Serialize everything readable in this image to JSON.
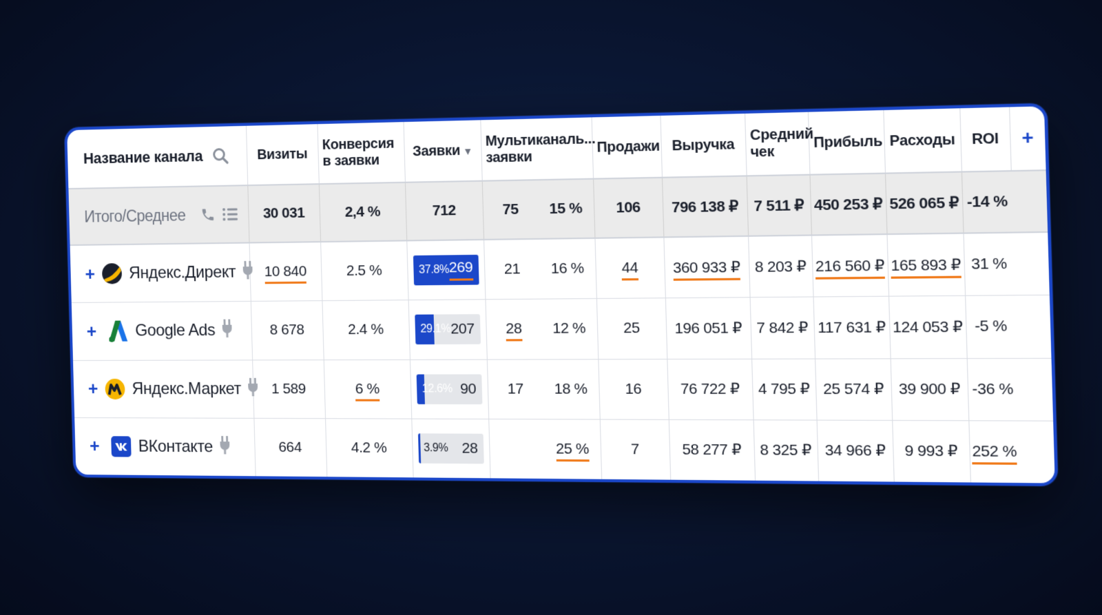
{
  "header": {
    "channel": "Название канала",
    "visits": "Визиты",
    "conversion": "Конверсия\nв заявки",
    "requests": "Заявки",
    "sort_arrow": "▼",
    "multichannel": "Мультиканаль...\nзаявки",
    "sales": "Продажи",
    "revenue": "Выручка",
    "avg_check": "Средний\nчек",
    "profit": "Прибыль",
    "expenses": "Расходы",
    "roi": "ROI",
    "add_column": "+"
  },
  "totals": {
    "label": "Итого/Среднее",
    "visits": "30 031",
    "conversion": "2,4 %",
    "requests": "712",
    "multichannel": "75",
    "multichannel_pct": "15 %",
    "sales": "106",
    "revenue": "796 138 ₽",
    "avg_check": "7 511 ₽",
    "profit": "450 253 ₽",
    "expenses": "526 065 ₽",
    "roi": "-14 %"
  },
  "rows": [
    {
      "name": "Яндекс.Директ",
      "logo": "yandex-direct-logo",
      "plus": "+",
      "visits": "10 840",
      "conversion": "2.5 %",
      "req_pct": "37.8%",
      "req_share": 0.378,
      "requests": "269",
      "multichannel": "21",
      "multichannel_pct": "16 %",
      "sales": "44",
      "revenue": "360 933 ₽",
      "avg_check": "8 203 ₽",
      "profit": "216 560 ₽",
      "expenses": "165 893 ₽",
      "roi": "31 %"
    },
    {
      "name": "Google Ads",
      "logo": "google-ads-logo",
      "plus": "+",
      "visits": "8 678",
      "conversion": "2.4 %",
      "req_pct": "29.1%",
      "req_share": 0.291,
      "requests": "207",
      "multichannel": "28",
      "multichannel_pct": "12 %",
      "sales": "25",
      "revenue": "196 051 ₽",
      "avg_check": "7 842 ₽",
      "profit": "117 631 ₽",
      "expenses": "124 053 ₽",
      "roi": "-5 %"
    },
    {
      "name": "Яндекс.Маркет",
      "logo": "yandex-market-logo",
      "plus": "+",
      "visits": "1 589",
      "conversion": "6 %",
      "req_pct": "12.6%",
      "req_share": 0.126,
      "requests": "90",
      "multichannel": "17",
      "multichannel_pct": "18 %",
      "sales": "16",
      "revenue": "76 722 ₽",
      "avg_check": "4 795 ₽",
      "profit": "25 574 ₽",
      "expenses": "39 900 ₽",
      "roi": "-36 %"
    },
    {
      "name": "ВКонтакте",
      "logo": "vk-logo",
      "plus": "+",
      "visits": "664",
      "conversion": "4.2 %",
      "req_pct": "3.9%",
      "req_share": 0.039,
      "requests": "28",
      "multichannel": "",
      "multichannel_pct": "25 %",
      "sales": "7",
      "revenue": "58 277 ₽",
      "avg_check": "8 325 ₽",
      "profit": "34 966 ₽",
      "expenses": "9 993 ₽",
      "roi": "252 %"
    }
  ],
  "colors": {
    "accent": "#1b47c9",
    "underline": "#f07a1a",
    "totals_bg": "#ebebeb"
  }
}
